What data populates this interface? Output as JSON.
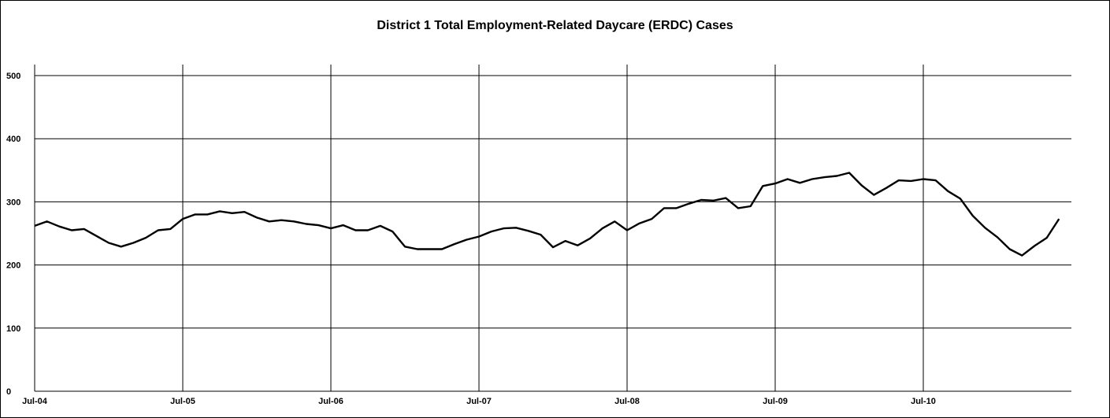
{
  "chart_data": {
    "type": "line",
    "title": "District 1 Total Employment-Related Daycare (ERDC) Cases",
    "xlabel": "",
    "ylabel": "",
    "ylim": [
      0,
      500
    ],
    "yticks": [
      0,
      100,
      200,
      300,
      400,
      500
    ],
    "xtick_labels": [
      "Jul-04",
      "Jul-05",
      "Jul-06",
      "Jul-07",
      "Jul-08",
      "Jul-09",
      "Jul-10"
    ],
    "grid": true,
    "legend": "none",
    "colors": {
      "line": "#000000",
      "grid": "#000000",
      "background": "#ffffff"
    },
    "x": [
      "Jul-04",
      "Aug-04",
      "Sep-04",
      "Oct-04",
      "Nov-04",
      "Dec-04",
      "Jan-05",
      "Feb-05",
      "Mar-05",
      "Apr-05",
      "May-05",
      "Jun-05",
      "Jul-05",
      "Aug-05",
      "Sep-05",
      "Oct-05",
      "Nov-05",
      "Dec-05",
      "Jan-06",
      "Feb-06",
      "Mar-06",
      "Apr-06",
      "May-06",
      "Jun-06",
      "Jul-06",
      "Aug-06",
      "Sep-06",
      "Oct-06",
      "Nov-06",
      "Dec-06",
      "Jan-07",
      "Feb-07",
      "Mar-07",
      "Apr-07",
      "May-07",
      "Jun-07",
      "Jul-07",
      "Aug-07",
      "Sep-07",
      "Oct-07",
      "Nov-07",
      "Dec-07",
      "Jan-08",
      "Feb-08",
      "Mar-08",
      "Apr-08",
      "May-08",
      "Jun-08",
      "Jul-08",
      "Aug-08",
      "Sep-08",
      "Oct-08",
      "Nov-08",
      "Dec-08",
      "Jan-09",
      "Feb-09",
      "Mar-09",
      "Apr-09",
      "May-09",
      "Jun-09",
      "Jul-09",
      "Aug-09",
      "Sep-09",
      "Oct-09",
      "Nov-09",
      "Dec-09",
      "Jan-10",
      "Feb-10",
      "Mar-10",
      "Apr-10",
      "May-10",
      "Jun-10",
      "Jul-10",
      "Aug-10",
      "Sep-10",
      "Oct-10",
      "Nov-10",
      "Dec-10",
      "Jan-11",
      "Feb-11",
      "Mar-11",
      "Apr-11",
      "May-11",
      "Jun-11"
    ],
    "series": [
      {
        "values": [
          262,
          269,
          261,
          255,
          257,
          246,
          235,
          229,
          235,
          243,
          255,
          257,
          273,
          280,
          280,
          285,
          282,
          284,
          275,
          269,
          271,
          269,
          265,
          263,
          258,
          263,
          255,
          255,
          262,
          253,
          229,
          225,
          225,
          225,
          233,
          240,
          245,
          253,
          258,
          259,
          254,
          248,
          228,
          238,
          231,
          242,
          258,
          269,
          255,
          266,
          273,
          290,
          290,
          297,
          303,
          302,
          306,
          290,
          293,
          325,
          329,
          336,
          330,
          336,
          339,
          341,
          346,
          326,
          311,
          322,
          334,
          333,
          336,
          334,
          317,
          305,
          278,
          259,
          244,
          225,
          215,
          230,
          243,
          273
        ]
      }
    ]
  }
}
